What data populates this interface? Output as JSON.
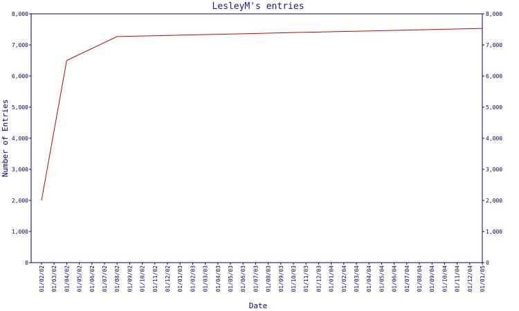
{
  "chart_data": {
    "type": "line",
    "title": "LesleyM's entries",
    "xlabel": "Date",
    "ylabel": "Number of Entries",
    "ylim": [
      0,
      8000
    ],
    "y_ticks": [
      "0",
      "1,000",
      "2,000",
      "3,000",
      "4,000",
      "5,000",
      "6,000",
      "7,000",
      "8,000"
    ],
    "y_tick_values": [
      0,
      1000,
      2000,
      3000,
      4000,
      5000,
      6000,
      7000,
      8000
    ],
    "x_ticks": [
      "01/02/02",
      "01/03/02",
      "01/04/02",
      "01/05/02",
      "01/06/02",
      "01/07/02",
      "01/08/02",
      "01/09/02",
      "01/10/02",
      "01/11/02",
      "01/12/02",
      "01/01/03",
      "01/02/03",
      "01/03/03",
      "01/04/03",
      "01/05/03",
      "01/06/03",
      "01/07/03",
      "01/08/03",
      "01/09/03",
      "01/10/03",
      "01/11/03",
      "01/12/03",
      "01/01/04",
      "01/02/04",
      "01/03/04",
      "01/04/04",
      "01/05/04",
      "01/06/04",
      "01/07/04",
      "01/08/04",
      "01/09/04",
      "01/10/04",
      "01/11/04",
      "01/12/04",
      "01/01/05"
    ],
    "series": [
      {
        "values": [
          {
            "x": "01/02/02",
            "y": 2000
          },
          {
            "x": "01/04/02",
            "y": 6500
          },
          {
            "x": "01/08/02",
            "y": 7270
          },
          {
            "x": "01/01/05",
            "y": 7530
          }
        ]
      }
    ],
    "dual_y_axis": true,
    "grid": false,
    "colors": {
      "line": "#cc0000",
      "axis": "#000066",
      "text": "#000066",
      "title": "#1a1a80"
    }
  }
}
